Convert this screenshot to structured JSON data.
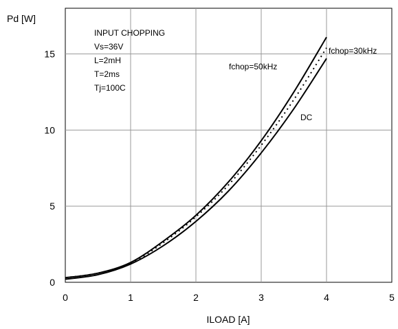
{
  "chart_data": {
    "type": "line",
    "ylabel": "Pd [W]",
    "xlabel": "ILOAD [A]",
    "xlim": [
      0,
      5
    ],
    "ylim": [
      0,
      18
    ],
    "x_ticks": [
      "0",
      "1",
      "2",
      "3",
      "4",
      "5"
    ],
    "y_ticks": [
      "0",
      "5",
      "10",
      "15"
    ],
    "grid": true,
    "info_text": [
      "INPUT CHOPPING",
      "Vs=36V",
      "L=2mH",
      "T=2ms",
      "Tj=100C"
    ],
    "series": [
      {
        "name": "fchop=50kHz",
        "style": "solid",
        "color": "#000000",
        "x": [
          0,
          0.5,
          1.0,
          1.5,
          2.0,
          2.5,
          3.0,
          3.5,
          4.0
        ],
        "y": [
          0.3,
          0.6,
          1.3,
          2.7,
          4.4,
          6.6,
          9.3,
          12.5,
          16.1
        ]
      },
      {
        "name": "fchop=30kHz",
        "style": "dotted",
        "color": "#000000",
        "x": [
          0,
          0.5,
          1.0,
          1.5,
          2.0,
          2.5,
          3.0,
          3.5,
          4.0
        ],
        "y": [
          0.3,
          0.6,
          1.25,
          2.6,
          4.3,
          6.4,
          9.0,
          12.0,
          15.4
        ]
      },
      {
        "name": "DC",
        "style": "solid",
        "color": "#000000",
        "x": [
          0,
          0.5,
          1.0,
          1.5,
          2.0,
          2.5,
          3.0,
          3.5,
          4.0
        ],
        "y": [
          0.2,
          0.5,
          1.2,
          2.4,
          4.0,
          6.0,
          8.5,
          11.4,
          14.7
        ]
      }
    ],
    "annotations": [
      "fchop=50kHz",
      "fchop=30kHz",
      "DC"
    ]
  }
}
